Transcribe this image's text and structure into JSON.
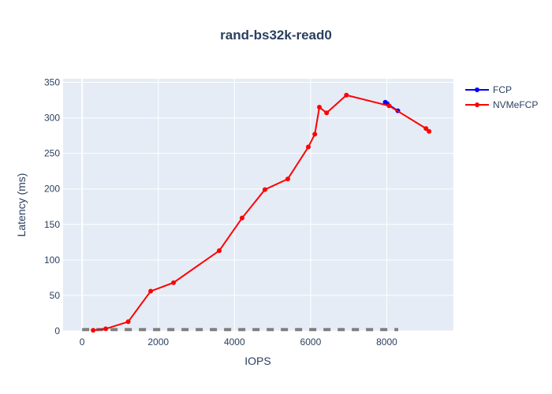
{
  "chart_data": {
    "type": "line",
    "title": "rand-bs32k-read0",
    "xlabel": "IOPS",
    "ylabel": "Latency (ms)",
    "xlim": [
      -500,
      9750
    ],
    "ylim": [
      0,
      355
    ],
    "x_ticks": [
      0,
      2000,
      4000,
      6000,
      8000
    ],
    "y_ticks": [
      0,
      50,
      100,
      150,
      200,
      250,
      300,
      350
    ],
    "grid": true,
    "legend_position": "top-right",
    "series": [
      {
        "name": "FCP",
        "color": "#0000ff",
        "x": [
          7960,
          8010,
          8290
        ],
        "y": [
          322,
          320,
          310
        ]
      },
      {
        "name": "NVMeFCP",
        "color": "#ff0000",
        "x": [
          290,
          620,
          1210,
          1800,
          2400,
          3600,
          4200,
          4800,
          5400,
          5940,
          6110,
          6230,
          6420,
          6940,
          8060,
          9030,
          9110
        ],
        "y": [
          1,
          3,
          13,
          56,
          68,
          113,
          159,
          199,
          214,
          259,
          277,
          315,
          307,
          332,
          317,
          285,
          281
        ]
      },
      {
        "name": "",
        "color": "#7f7f7f",
        "style": "dashed",
        "x": [
          0,
          8300
        ],
        "y": [
          2,
          2
        ]
      }
    ]
  }
}
